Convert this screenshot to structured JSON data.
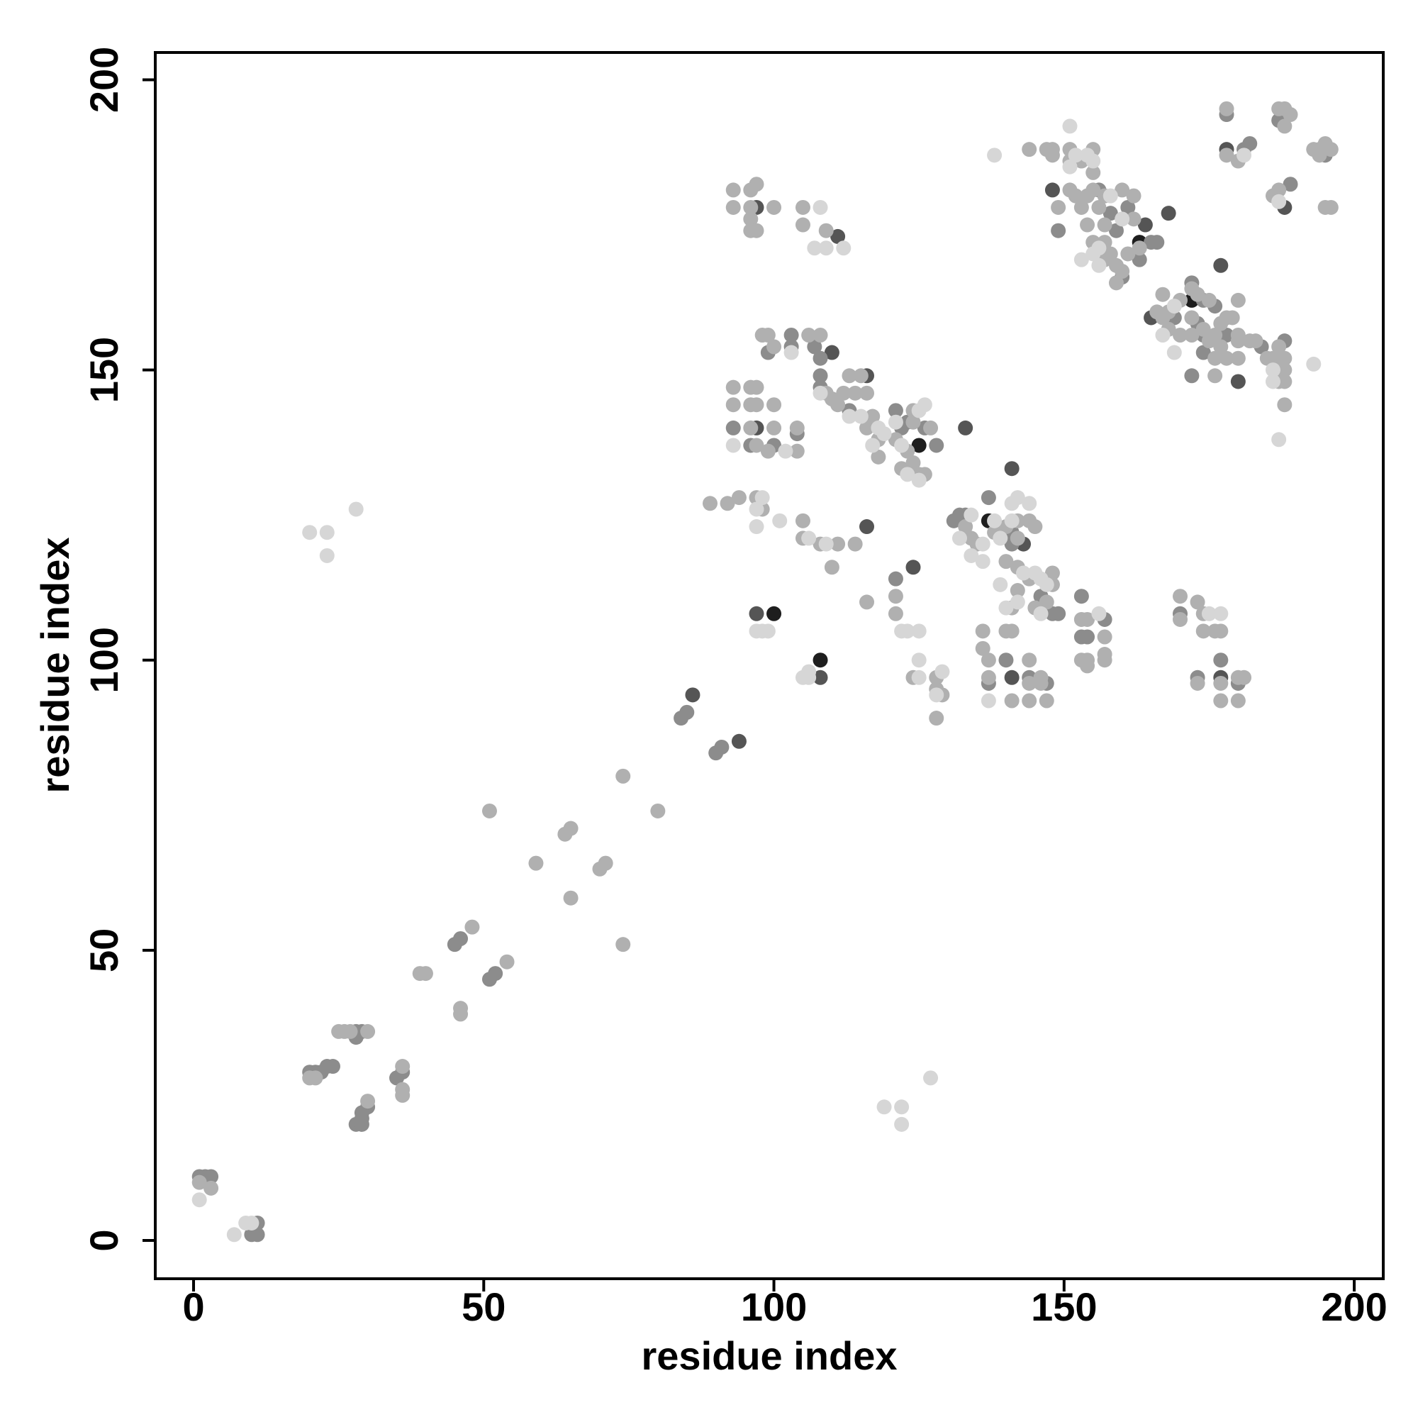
{
  "chart_data": {
    "type": "scatter",
    "xlabel": "residue index",
    "ylabel": "residue index",
    "xlim": [
      -6.6,
      205
    ],
    "ylim": [
      -6.6,
      204.7
    ],
    "xticks": [
      0,
      50,
      100,
      150,
      200
    ],
    "yticks": [
      0,
      50,
      100,
      150,
      200
    ],
    "series": [
      {
        "color": "#1e1e1e",
        "x": [
          125,
          100,
          108,
          137,
          163,
          172
        ],
        "y": [
          137,
          108,
          100,
          124,
          172,
          162
        ]
      },
      {
        "color": "#555555",
        "x": [
          97,
          111,
          110,
          97,
          133,
          116,
          97,
          108,
          124,
          143,
          141,
          141,
          148,
          164,
          168,
          165,
          177,
          178,
          188,
          177,
          86,
          94,
          116,
          180
        ],
        "y": [
          178,
          173,
          153,
          140,
          140,
          123,
          108,
          97,
          116,
          120,
          133,
          97,
          181,
          175,
          177,
          159,
          168,
          188,
          178,
          97,
          94,
          86,
          149,
          148
        ]
      },
      {
        "color": "#8c8c8c",
        "x": [
          1,
          2,
          3,
          11,
          11,
          10,
          20,
          21,
          22,
          23,
          24,
          28,
          29,
          28,
          28,
          29,
          29,
          29,
          30,
          35,
          36,
          45,
          46,
          51,
          52,
          84,
          85,
          90,
          91,
          99,
          103,
          103,
          107,
          108,
          93,
          96,
          100,
          104,
          108,
          108,
          113,
          121,
          122,
          123,
          126,
          128,
          121,
          132,
          133,
          131,
          137,
          141,
          141,
          146,
          148,
          149,
          140,
          144,
          137,
          147,
          153,
          153,
          154,
          157,
          170,
          173,
          177,
          180,
          149,
          156,
          158,
          159,
          161,
          160,
          163,
          165,
          166,
          172,
          174,
          176,
          169,
          173,
          174,
          178,
          184,
          172,
          178,
          181,
          182,
          187,
          189,
          195,
          188,
          174
        ],
        "y": [
          11,
          11,
          11,
          3,
          1,
          1,
          29,
          29,
          29,
          30,
          30,
          36,
          36,
          35,
          20,
          20,
          21,
          22,
          23,
          28,
          29,
          51,
          52,
          45,
          46,
          90,
          91,
          84,
          85,
          153,
          156,
          154,
          154,
          152,
          140,
          137,
          137,
          139,
          149,
          147,
          143,
          143,
          140,
          141,
          140,
          137,
          114,
          125,
          125,
          124,
          128,
          122,
          120,
          111,
          108,
          108,
          100,
          97,
          96,
          96,
          111,
          104,
          104,
          107,
          108,
          97,
          100,
          96,
          174,
          181,
          177,
          174,
          178,
          166,
          169,
          172,
          172,
          165,
          162,
          161,
          159,
          158,
          156,
          156,
          154,
          149,
          194,
          188,
          189,
          193,
          182,
          187,
          155,
          153
        ]
      },
      {
        "color": "#b0b0b0",
        "x": [
          1,
          3,
          25,
          26,
          27,
          30,
          36,
          36,
          36,
          30,
          20,
          21,
          39,
          40,
          48,
          46,
          46,
          54,
          51,
          59,
          64,
          65,
          65,
          70,
          71,
          74,
          74,
          80,
          93,
          96,
          97,
          93,
          96,
          100,
          96,
          97,
          96,
          105,
          105,
          109,
          98,
          99,
          100,
          106,
          108,
          93,
          96,
          97,
          93,
          96,
          97,
          100,
          96,
          100,
          97,
          99,
          104,
          104,
          109,
          110,
          111,
          113,
          115,
          112,
          114,
          116,
          117,
          116,
          118,
          118,
          124,
          124,
          127,
          121,
          123,
          124,
          122,
          125,
          126,
          89,
          92,
          94,
          97,
          98,
          105,
          105,
          108,
          111,
          114,
          110,
          116,
          121,
          121,
          124,
          128,
          128,
          129,
          128,
          134,
          135,
          133,
          138,
          140,
          142,
          142,
          144,
          145,
          140,
          142,
          144,
          148,
          148,
          147,
          145,
          141,
          142,
          136,
          140,
          141,
          136,
          137,
          137,
          141,
          144,
          144,
          146,
          146,
          144,
          147,
          153,
          154,
          153,
          154,
          154,
          157,
          157,
          157,
          170,
          170,
          173,
          174,
          174,
          177,
          176,
          173,
          177,
          180,
          181,
          177,
          180,
          144,
          147,
          148,
          148,
          151,
          151,
          153,
          155,
          155,
          149,
          151,
          152,
          153,
          154,
          155,
          157,
          156,
          157,
          154,
          155,
          157,
          158,
          157,
          159,
          160,
          159,
          161,
          162,
          162,
          160,
          163,
          167,
          172,
          173,
          175,
          170,
          168,
          166,
          167,
          172,
          174,
          177,
          178,
          179,
          168,
          170,
          172,
          176,
          180,
          175,
          177,
          180,
          176,
          178,
          180,
          182,
          183,
          185,
          186,
          187,
          188,
          187,
          188,
          187,
          188,
          188,
          176,
          180,
          178,
          180,
          187,
          188,
          189,
          188,
          186,
          187,
          193,
          194,
          195,
          196,
          194,
          195,
          196,
          178
        ],
        "y": [
          10,
          9,
          36,
          36,
          36,
          36,
          30,
          26,
          25,
          24,
          28,
          28,
          46,
          46,
          54,
          40,
          39,
          48,
          74,
          65,
          70,
          71,
          59,
          64,
          65,
          80,
          51,
          74,
          181,
          181,
          182,
          178,
          178,
          178,
          176,
          174,
          174,
          178,
          175,
          174,
          156,
          156,
          154,
          156,
          156,
          147,
          147,
          147,
          144,
          144,
          144,
          144,
          140,
          140,
          137,
          136,
          136,
          140,
          146,
          145,
          144,
          149,
          149,
          146,
          146,
          146,
          142,
          140,
          138,
          135,
          143,
          141,
          140,
          138,
          136,
          134,
          133,
          132,
          132,
          127,
          127,
          128,
          128,
          126,
          124,
          121,
          120,
          120,
          120,
          116,
          110,
          111,
          108,
          97,
          97,
          95,
          94,
          90,
          121,
          120,
          123,
          122,
          123,
          124,
          121,
          124,
          123,
          117,
          116,
          114,
          115,
          113,
          110,
          109,
          109,
          112,
          105,
          105,
          105,
          102,
          100,
          97,
          93,
          100,
          96,
          97,
          96,
          93,
          93,
          107,
          107,
          100,
          100,
          99,
          104,
          101,
          100,
          111,
          107,
          110,
          108,
          105,
          105,
          105,
          96,
          96,
          97,
          97,
          93,
          93,
          188,
          188,
          188,
          187,
          188,
          186,
          186,
          188,
          184,
          178,
          181,
          180,
          178,
          180,
          181,
          180,
          178,
          175,
          175,
          172,
          172,
          170,
          169,
          168,
          167,
          165,
          170,
          176,
          180,
          181,
          171,
          163,
          164,
          163,
          162,
          162,
          160,
          160,
          159,
          159,
          157,
          158,
          159,
          159,
          157,
          156,
          156,
          156,
          156,
          155,
          154,
          155,
          152,
          152,
          152,
          155,
          155,
          152,
          152,
          151,
          152,
          154,
          150,
          148,
          148,
          144,
          149,
          162,
          195,
          186,
          195,
          195,
          194,
          192,
          180,
          181,
          188,
          188,
          189,
          188,
          187,
          178,
          178,
          187
        ]
      },
      {
        "color": "#d6d6d6",
        "x": [
          1,
          7,
          9,
          10,
          20,
          23,
          23,
          28,
          119,
          122,
          122,
          127,
          93,
          97,
          97,
          98,
          101,
          106,
          109,
          97,
          98,
          99,
          105,
          106,
          106,
          102,
          107,
          108,
          109,
          112,
          103,
          108,
          113,
          115,
          118,
          119,
          117,
          121,
          125,
          126,
          122,
          123,
          125,
          122,
          123,
          125,
          125,
          125,
          129,
          128,
          134,
          132,
          136,
          134,
          136,
          138,
          139,
          141,
          141,
          142,
          144,
          139,
          143,
          145,
          146,
          147,
          146,
          140,
          142,
          137,
          156,
          175,
          177,
          138,
          151,
          152,
          151,
          154,
          155,
          158,
          156,
          156,
          155,
          153,
          160,
          169,
          167,
          169,
          186,
          186,
          193,
          187,
          181,
          187
        ],
        "y": [
          7,
          1,
          3,
          3,
          122,
          122,
          118,
          126,
          23,
          23,
          20,
          28,
          137,
          126,
          123,
          128,
          124,
          121,
          120,
          105,
          105,
          105,
          97,
          97,
          98,
          136,
          171,
          178,
          171,
          171,
          153,
          146,
          142,
          142,
          140,
          139,
          137,
          141,
          143,
          144,
          137,
          132,
          131,
          105,
          105,
          105,
          100,
          97,
          98,
          94,
          125,
          121,
          120,
          118,
          117,
          124,
          121,
          124,
          127,
          128,
          127,
          113,
          115,
          115,
          114,
          113,
          108,
          109,
          110,
          93,
          108,
          108,
          108,
          187,
          192,
          187,
          185,
          187,
          186,
          180,
          171,
          168,
          170,
          169,
          176,
          161,
          156,
          153,
          150,
          148,
          151,
          138,
          187,
          179
        ]
      }
    ]
  }
}
